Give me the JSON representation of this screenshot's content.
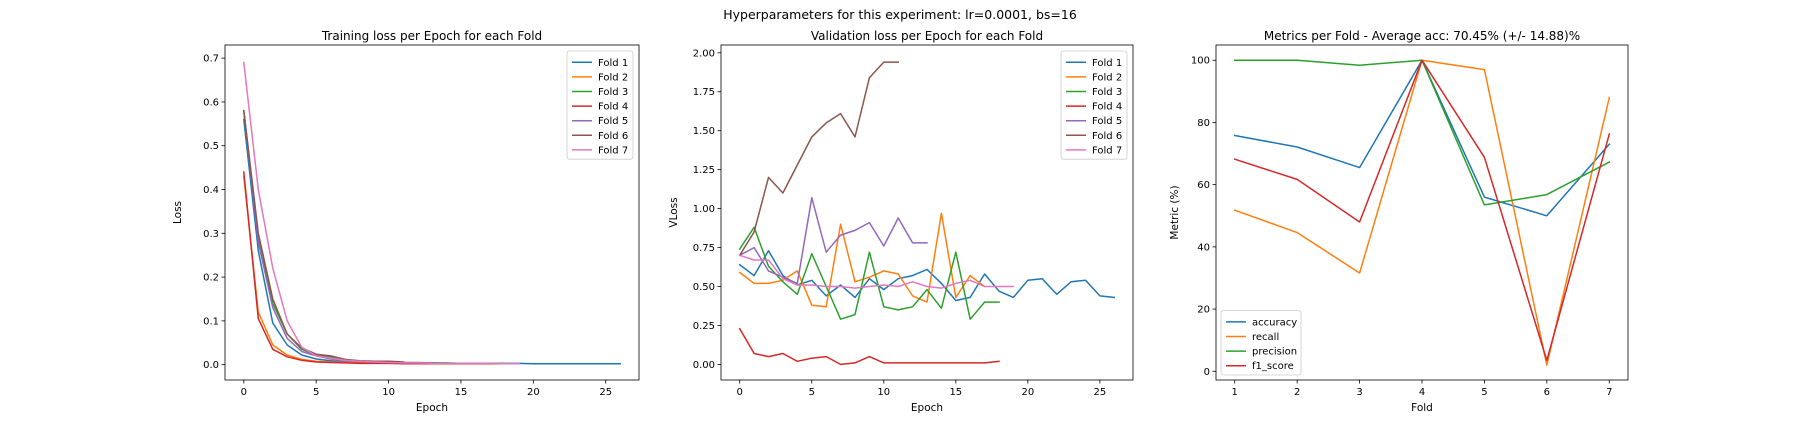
{
  "suptitle": "Hyperparameters for this experiment: lr=0.0001, bs=16",
  "chart_data": [
    {
      "type": "line",
      "title": "Training loss per Epoch for each Fold",
      "xlabel": "Epoch",
      "ylabel": "Loss",
      "xlim": [
        -1.3,
        27.3
      ],
      "ylim": [
        -0.035,
        0.73
      ],
      "xticks": [
        0,
        5,
        10,
        15,
        20,
        25
      ],
      "yticks": [
        0.0,
        0.1,
        0.2,
        0.3,
        0.4,
        0.5,
        0.6,
        0.7
      ],
      "ytick_labels": [
        "0.0",
        "0.1",
        "0.2",
        "0.3",
        "0.4",
        "0.5",
        "0.6",
        "0.7"
      ],
      "legend": "top-right",
      "grid": false,
      "series": [
        {
          "name": "Fold 1",
          "color": "#1f77b4",
          "x": [
            0,
            1,
            2,
            3,
            4,
            5,
            6,
            7,
            8,
            9,
            10,
            11,
            12,
            13,
            14,
            15,
            16,
            17,
            18,
            19,
            20,
            21,
            22,
            23,
            24,
            25,
            26
          ],
          "y": [
            0.56,
            0.26,
            0.095,
            0.045,
            0.022,
            0.013,
            0.009,
            0.007,
            0.006,
            0.005,
            0.005,
            0.004,
            0.004,
            0.004,
            0.003,
            0.003,
            0.003,
            0.003,
            0.003,
            0.003,
            0.002,
            0.002,
            0.002,
            0.002,
            0.002,
            0.002,
            0.002
          ]
        },
        {
          "name": "Fold 2",
          "color": "#ff7f0e",
          "x": [
            0,
            1,
            2,
            3,
            4,
            5,
            6,
            7,
            8,
            9,
            10,
            11,
            12,
            13,
            14,
            15,
            16,
            17,
            18,
            19
          ],
          "y": [
            0.43,
            0.12,
            0.045,
            0.022,
            0.012,
            0.008,
            0.006,
            0.005,
            0.004,
            0.004,
            0.003,
            0.003,
            0.003,
            0.003,
            0.002,
            0.002,
            0.002,
            0.002,
            0.002,
            0.002
          ]
        },
        {
          "name": "Fold 3",
          "color": "#2ca02c",
          "x": [
            0,
            1,
            2,
            3,
            4,
            5,
            6,
            7,
            8,
            9,
            10,
            11,
            12,
            13,
            14,
            15,
            16,
            17,
            18
          ],
          "y": [
            0.58,
            0.29,
            0.14,
            0.07,
            0.035,
            0.022,
            0.018,
            0.01,
            0.008,
            0.007,
            0.008,
            0.005,
            0.005,
            0.004,
            0.004,
            0.003,
            0.003,
            0.003,
            0.003
          ]
        },
        {
          "name": "Fold 4",
          "color": "#d62728",
          "x": [
            0,
            1,
            2,
            3,
            4,
            5,
            6,
            7,
            8,
            9,
            10,
            11,
            12,
            13,
            14,
            15,
            16,
            17,
            18
          ],
          "y": [
            0.44,
            0.105,
            0.035,
            0.018,
            0.01,
            0.006,
            0.005,
            0.004,
            0.003,
            0.003,
            0.003,
            0.002,
            0.002,
            0.002,
            0.002,
            0.002,
            0.002,
            0.002,
            0.002
          ]
        },
        {
          "name": "Fold 5",
          "color": "#9467bd",
          "x": [
            0,
            1,
            2,
            3,
            4,
            5,
            6,
            7,
            8,
            9,
            10,
            11,
            12,
            13
          ],
          "y": [
            0.58,
            0.28,
            0.13,
            0.06,
            0.03,
            0.02,
            0.013,
            0.009,
            0.007,
            0.006,
            0.005,
            0.005,
            0.004,
            0.004
          ]
        },
        {
          "name": "Fold 6",
          "color": "#8c564b",
          "x": [
            0,
            1,
            2,
            3,
            4,
            5,
            6,
            7,
            8,
            9,
            10,
            11
          ],
          "y": [
            0.58,
            0.3,
            0.15,
            0.07,
            0.038,
            0.024,
            0.02,
            0.012,
            0.009,
            0.008,
            0.008,
            0.006
          ]
        },
        {
          "name": "Fold 7",
          "color": "#e377c2",
          "x": [
            0,
            1,
            2,
            3,
            4,
            5,
            6,
            7,
            8,
            9,
            10,
            11,
            12,
            13,
            14,
            15,
            16,
            17,
            18,
            19
          ],
          "y": [
            0.69,
            0.4,
            0.22,
            0.1,
            0.04,
            0.02,
            0.015,
            0.01,
            0.008,
            0.006,
            0.005,
            0.004,
            0.004,
            0.003,
            0.003,
            0.003,
            0.003,
            0.003,
            0.002,
            0.002
          ]
        }
      ]
    },
    {
      "type": "line",
      "title": "Validation loss per Epoch for each Fold",
      "xlabel": "Epoch",
      "ylabel": "VLoss",
      "xlim": [
        -1.3,
        27.3
      ],
      "ylim": [
        -0.1,
        2.05
      ],
      "xticks": [
        0,
        5,
        10,
        15,
        20,
        25
      ],
      "yticks": [
        0.0,
        0.25,
        0.5,
        0.75,
        1.0,
        1.25,
        1.5,
        1.75,
        2.0
      ],
      "ytick_labels": [
        "0.00",
        "0.25",
        "0.50",
        "0.75",
        "1.00",
        "1.25",
        "1.50",
        "1.75",
        "2.00"
      ],
      "legend": "top-right",
      "grid": false,
      "series": [
        {
          "name": "Fold 1",
          "color": "#1f77b4",
          "x": [
            0,
            1,
            2,
            3,
            4,
            5,
            6,
            7,
            8,
            9,
            10,
            11,
            12,
            13,
            14,
            15,
            16,
            17,
            18,
            19,
            20,
            21,
            22,
            23,
            24,
            25,
            26
          ],
          "y": [
            0.64,
            0.57,
            0.73,
            0.57,
            0.51,
            0.54,
            0.44,
            0.51,
            0.43,
            0.55,
            0.48,
            0.55,
            0.57,
            0.61,
            0.52,
            0.41,
            0.43,
            0.58,
            0.47,
            0.43,
            0.54,
            0.55,
            0.45,
            0.53,
            0.54,
            0.44,
            0.43
          ]
        },
        {
          "name": "Fold 2",
          "color": "#ff7f0e",
          "x": [
            0,
            1,
            2,
            3,
            4,
            5,
            6,
            7,
            8,
            9,
            10,
            11,
            12,
            13,
            14,
            15,
            16,
            17
          ],
          "y": [
            0.59,
            0.52,
            0.52,
            0.54,
            0.6,
            0.38,
            0.37,
            0.9,
            0.53,
            0.56,
            0.6,
            0.58,
            0.44,
            0.4,
            0.97,
            0.43,
            0.57,
            0.5
          ]
        },
        {
          "name": "Fold 3",
          "color": "#2ca02c",
          "x": [
            0,
            1,
            2,
            3,
            4,
            5,
            6,
            7,
            8,
            9,
            10,
            11,
            12,
            13,
            14,
            15,
            16,
            17,
            18
          ],
          "y": [
            0.74,
            0.88,
            0.63,
            0.53,
            0.45,
            0.71,
            0.5,
            0.29,
            0.32,
            0.72,
            0.37,
            0.35,
            0.37,
            0.48,
            0.36,
            0.72,
            0.29,
            0.4,
            0.4
          ]
        },
        {
          "name": "Fold 4",
          "color": "#d62728",
          "x": [
            0,
            1,
            2,
            3,
            4,
            5,
            6,
            7,
            8,
            9,
            10,
            11,
            12,
            13,
            14,
            15,
            16,
            17,
            18
          ],
          "y": [
            0.23,
            0.07,
            0.05,
            0.07,
            0.02,
            0.04,
            0.05,
            0.0,
            0.01,
            0.05,
            0.01,
            0.01,
            0.01,
            0.01,
            0.01,
            0.01,
            0.01,
            0.01,
            0.02
          ]
        },
        {
          "name": "Fold 5",
          "color": "#9467bd",
          "x": [
            0,
            1,
            2,
            3,
            4,
            5,
            6,
            7,
            8,
            9,
            10,
            11,
            12,
            13
          ],
          "y": [
            0.7,
            0.75,
            0.6,
            0.56,
            0.52,
            1.07,
            0.72,
            0.83,
            0.86,
            0.91,
            0.76,
            0.94,
            0.78,
            0.78
          ]
        },
        {
          "name": "Fold 6",
          "color": "#8c564b",
          "x": [
            0,
            1,
            2,
            3,
            4,
            5,
            6,
            7,
            8,
            9,
            10,
            11
          ],
          "y": [
            0.7,
            0.85,
            1.2,
            1.1,
            1.28,
            1.46,
            1.55,
            1.61,
            1.46,
            1.84,
            1.94,
            1.94
          ]
        },
        {
          "name": "Fold 7",
          "color": "#e377c2",
          "x": [
            0,
            1,
            2,
            3,
            4,
            5,
            6,
            7,
            8,
            9,
            10,
            11,
            12,
            13,
            14,
            15,
            16,
            17,
            18,
            19
          ],
          "y": [
            0.7,
            0.67,
            0.67,
            0.55,
            0.51,
            0.51,
            0.5,
            0.5,
            0.49,
            0.5,
            0.51,
            0.5,
            0.53,
            0.5,
            0.49,
            0.52,
            0.54,
            0.5,
            0.5,
            0.5
          ]
        }
      ]
    },
    {
      "type": "line",
      "title": "Metrics per Fold - Average acc: 70.45% (+/- 14.88)%",
      "xlabel": "Fold",
      "ylabel": "Metric (%)",
      "xlim": [
        0.7,
        7.3
      ],
      "ylim": [
        -2.8,
        104.9
      ],
      "xticks": [
        1,
        2,
        3,
        4,
        5,
        6,
        7
      ],
      "yticks": [
        0,
        20,
        40,
        60,
        80,
        100
      ],
      "ytick_labels": [
        "0",
        "20",
        "40",
        "60",
        "80",
        "100"
      ],
      "legend": "bottom-left",
      "grid": false,
      "series": [
        {
          "name": "accuracy",
          "color": "#1f77b4",
          "x": [
            1,
            2,
            3,
            4,
            5,
            6,
            7
          ],
          "y": [
            75.8,
            72.1,
            65.5,
            100,
            56,
            50,
            73
          ]
        },
        {
          "name": "recall",
          "color": "#ff7f0e",
          "x": [
            1,
            2,
            3,
            4,
            5,
            6,
            7
          ],
          "y": [
            51.8,
            44.6,
            31.6,
            100,
            97,
            2,
            88
          ]
        },
        {
          "name": "precision",
          "color": "#2ca02c",
          "x": [
            1,
            2,
            3,
            4,
            5,
            6,
            7
          ],
          "y": [
            100,
            100,
            98.4,
            100,
            53.5,
            56.8,
            67.3
          ]
        },
        {
          "name": "f1_score",
          "color": "#d62728",
          "x": [
            1,
            2,
            3,
            4,
            5,
            6,
            7
          ],
          "y": [
            68.2,
            61.7,
            48,
            100,
            68.8,
            3.5,
            76.3
          ]
        }
      ]
    }
  ]
}
